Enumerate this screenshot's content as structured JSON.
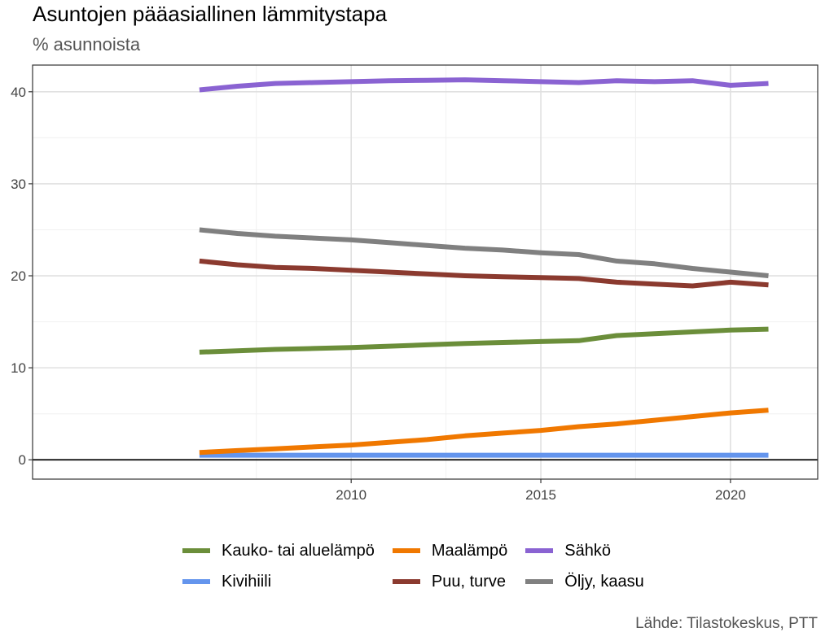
{
  "title": "Asuntojen pääasiallinen lämmitystapa",
  "subtitle": "% asunnoista",
  "caption": "Lähde: Tilastokeskus, PTT",
  "chart_data": {
    "type": "line",
    "title": "Asuntojen pääasiallinen lämmitystapa",
    "subtitle": "% asunnoista",
    "xlabel": "",
    "ylabel": "",
    "x": [
      2006,
      2007,
      2008,
      2009,
      2010,
      2011,
      2012,
      2013,
      2014,
      2015,
      2016,
      2017,
      2018,
      2019,
      2020,
      2021
    ],
    "xlim": [
      2001.6,
      2022.3
    ],
    "ylim": [
      -2.1,
      42.9
    ],
    "x_ticks": [
      2010,
      2015,
      2020
    ],
    "y_ticks": [
      0,
      10,
      20,
      30,
      40
    ],
    "x_tick_labels": [
      "2010",
      "2015",
      "2020"
    ],
    "y_tick_labels": [
      "0",
      "10",
      "20",
      "30",
      "40"
    ],
    "grid": true,
    "zero_line": true,
    "legend_position": "bottom",
    "series": [
      {
        "name": "Kauko- tai aluelämpö",
        "color": "#6b8e3a",
        "values": [
          11.7,
          11.85,
          12.0,
          12.1,
          12.2,
          12.35,
          12.5,
          12.65,
          12.75,
          12.85,
          12.95,
          13.5,
          13.7,
          13.9,
          14.1,
          14.2
        ]
      },
      {
        "name": "Kivihiili",
        "color": "#6495ed",
        "values": [
          0.5,
          0.5,
          0.5,
          0.5,
          0.5,
          0.5,
          0.5,
          0.5,
          0.5,
          0.5,
          0.5,
          0.5,
          0.5,
          0.5,
          0.5,
          0.5
        ]
      },
      {
        "name": "Maalämpö",
        "color": "#f07800",
        "values": [
          0.8,
          1.0,
          1.2,
          1.4,
          1.6,
          1.9,
          2.2,
          2.6,
          2.9,
          3.2,
          3.6,
          3.9,
          4.3,
          4.7,
          5.1,
          5.4
        ]
      },
      {
        "name": "Puu, turve",
        "color": "#8b3a2f",
        "values": [
          21.6,
          21.2,
          20.9,
          20.8,
          20.6,
          20.4,
          20.2,
          20.0,
          19.9,
          19.8,
          19.7,
          19.3,
          19.1,
          18.9,
          19.3,
          19.0
        ]
      },
      {
        "name": "Sähkö",
        "color": "#8a63d2",
        "values": [
          40.2,
          40.6,
          40.9,
          41.0,
          41.1,
          41.2,
          41.25,
          41.3,
          41.2,
          41.1,
          41.0,
          41.2,
          41.1,
          41.2,
          40.7,
          40.9
        ]
      },
      {
        "name": "Öljy, kaasu",
        "color": "#808080",
        "values": [
          25.0,
          24.6,
          24.3,
          24.1,
          23.9,
          23.6,
          23.3,
          23.0,
          22.8,
          22.5,
          22.3,
          21.6,
          21.3,
          20.8,
          20.4,
          20.0
        ]
      }
    ]
  }
}
